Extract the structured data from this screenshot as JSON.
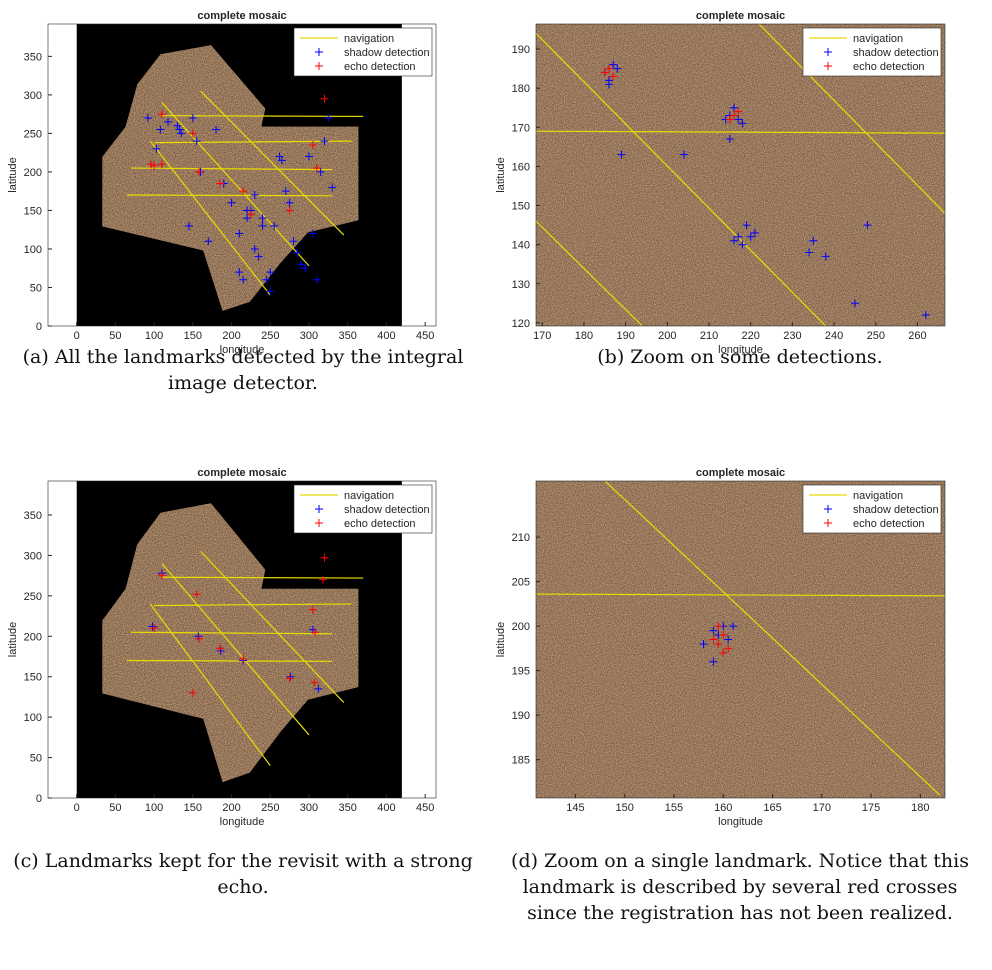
{
  "chart_data": [
    {
      "type": "scatter",
      "title": "complete mosaic",
      "x_label": "longitude",
      "y_label": "latitude",
      "caption": "(a) All the landmarks detected by the integral image detector.",
      "xlim": [
        -37,
        464
      ],
      "ylim": [
        0,
        392
      ],
      "xticks": [
        0,
        50,
        100,
        150,
        200,
        250,
        300,
        350,
        400,
        450
      ],
      "yticks": [
        0,
        50,
        100,
        150,
        200,
        250,
        300,
        350
      ],
      "background": "full-mosaic",
      "legend": "upper right",
      "series": [
        {
          "name": "navigation",
          "color": "#e8dc00",
          "draw": "line",
          "x": [
            110,
            370,
            null,
            100,
            355,
            null,
            70,
            330,
            null,
            65,
            330,
            null,
            95,
            250,
            null,
            110,
            300,
            null,
            160,
            345
          ],
          "values": [
            273,
            272,
            null,
            238,
            240,
            null,
            205,
            203,
            null,
            170,
            169,
            null,
            240,
            40,
            null,
            290,
            78,
            null,
            305,
            118
          ]
        },
        {
          "name": "shadow detection",
          "color": "#0000ff",
          "draw": "marker",
          "x": [
            92,
            103,
            108,
            118,
            130,
            133,
            135,
            150,
            155,
            160,
            180,
            190,
            200,
            210,
            220,
            225,
            230,
            235,
            240,
            245,
            250,
            255,
            262,
            265,
            270,
            275,
            280,
            285,
            290,
            295,
            300,
            305,
            310,
            315,
            320,
            325,
            330,
            210,
            215,
            220,
            230,
            240,
            250,
            170,
            145
          ],
          "values": [
            270,
            230,
            255,
            265,
            260,
            255,
            250,
            270,
            240,
            200,
            255,
            185,
            160,
            120,
            140,
            150,
            170,
            90,
            140,
            60,
            70,
            130,
            220,
            215,
            175,
            160,
            110,
            95,
            80,
            75,
            220,
            120,
            60,
            200,
            240,
            270,
            180,
            70,
            60,
            150,
            100,
            130,
            45,
            110,
            130
          ]
        },
        {
          "name": "echo detection",
          "color": "#ff0000",
          "draw": "marker",
          "x": [
            96,
            110,
            150,
            158,
            185,
            215,
            225,
            275,
            305,
            310,
            320,
            110,
            100
          ],
          "values": [
            210,
            275,
            250,
            200,
            185,
            175,
            145,
            150,
            235,
            205,
            295,
            210,
            208
          ]
        }
      ]
    },
    {
      "type": "scatter",
      "title": "complete mosaic",
      "x_label": "longitude",
      "y_label": "latitude",
      "caption": "(b) Zoom on some detections.",
      "xlim": [
        168.5,
        266.6
      ],
      "ylim": [
        119.2,
        196.4
      ],
      "xticks": [
        170,
        180,
        190,
        200,
        210,
        220,
        230,
        240,
        250,
        260
      ],
      "yticks": [
        120,
        130,
        140,
        150,
        160,
        170,
        180,
        190
      ],
      "background": "zoom",
      "legend": "upper right",
      "series": [
        {
          "name": "navigation",
          "color": "#e8dc00",
          "draw": "line",
          "x": [
            168.5,
            238,
            null,
            168.5,
            266.6,
            null,
            168.5,
            194,
            null,
            222,
            266.6
          ],
          "values": [
            194,
            119.2,
            null,
            169,
            168.5,
            null,
            146,
            119.2,
            null,
            196.4,
            148
          ]
        },
        {
          "name": "shadow detection",
          "color": "#0000ff",
          "draw": "marker",
          "x": [
            185,
            186,
            187,
            188,
            186,
            215,
            216,
            217,
            214,
            218,
            215,
            189,
            204,
            216,
            217,
            218,
            219,
            221,
            220,
            234,
            235,
            238,
            245,
            248,
            262
          ],
          "values": [
            184,
            182,
            186,
            185,
            181,
            173,
            175,
            172,
            172,
            171,
            167,
            163,
            163,
            141,
            142,
            140,
            145,
            143,
            142,
            138,
            141,
            137,
            125,
            145,
            122
          ]
        },
        {
          "name": "echo detection",
          "color": "#ff0000",
          "draw": "marker",
          "x": [
            185,
            186,
            187,
            215,
            216,
            217
          ],
          "values": [
            184,
            185,
            183,
            172,
            173,
            174
          ]
        }
      ]
    },
    {
      "type": "scatter",
      "title": "complete mosaic",
      "x_label": "longitude",
      "y_label": "latitude",
      "caption": "(c) Landmarks kept for the revisit with a strong echo.",
      "xlim": [
        -37,
        464
      ],
      "ylim": [
        0,
        392
      ],
      "xticks": [
        0,
        50,
        100,
        150,
        200,
        250,
        300,
        350,
        400,
        450
      ],
      "yticks": [
        0,
        50,
        100,
        150,
        200,
        250,
        300,
        350
      ],
      "background": "full-mosaic",
      "legend": "upper right",
      "series": [
        {
          "name": "navigation",
          "color": "#e8dc00",
          "draw": "line",
          "x": [
            110,
            370,
            null,
            100,
            355,
            null,
            70,
            330,
            null,
            65,
            330,
            null,
            95,
            250,
            null,
            110,
            300,
            null,
            160,
            345
          ],
          "values": [
            273,
            272,
            null,
            238,
            240,
            null,
            205,
            203,
            null,
            170,
            169,
            null,
            240,
            40,
            null,
            290,
            78,
            null,
            305,
            118
          ]
        },
        {
          "name": "shadow detection",
          "color": "#0000ff",
          "draw": "marker",
          "x": [
            98,
            110,
            157,
            186,
            215,
            276,
            305,
            312
          ],
          "values": [
            212,
            278,
            200,
            182,
            170,
            150,
            208,
            135
          ]
        },
        {
          "name": "echo detection",
          "color": "#ff0000",
          "draw": "marker",
          "x": [
            100,
            110,
            150,
            155,
            158,
            185,
            215,
            275,
            305,
            308,
            318,
            320,
            307
          ],
          "values": [
            210,
            275,
            130,
            252,
            197,
            185,
            172,
            148,
            233,
            205,
            270,
            297,
            143
          ]
        }
      ]
    },
    {
      "type": "scatter",
      "title": "complete mosaic",
      "x_label": "longitude",
      "y_label": "latitude",
      "caption": "(d) Zoom on a single landmark. Notice that this landmark is described by several red crosses since the registration has not been realized.",
      "xlim": [
        141,
        182.5
      ],
      "ylim": [
        180.7,
        216.3
      ],
      "xticks": [
        145,
        150,
        155,
        160,
        165,
        170,
        175,
        180
      ],
      "yticks": [
        185,
        190,
        195,
        200,
        205,
        210
      ],
      "background": "zoom",
      "legend": "upper right",
      "series": [
        {
          "name": "navigation",
          "color": "#e8dc00",
          "draw": "line",
          "x": [
            141,
            182.5,
            null,
            148,
            182
          ],
          "values": [
            203.6,
            203.4,
            null,
            216.3,
            181
          ]
        },
        {
          "name": "shadow detection",
          "color": "#0000ff",
          "draw": "marker",
          "x": [
            158,
            159,
            159.5,
            160,
            161,
            160.5,
            159
          ],
          "values": [
            198,
            196,
            199,
            200,
            200,
            198.5,
            199.5
          ]
        },
        {
          "name": "echo detection",
          "color": "#ff0000",
          "draw": "marker",
          "x": [
            159.5,
            160,
            160,
            159.5,
            160.5,
            159
          ],
          "values": [
            200,
            199,
            197,
            198,
            197.5,
            198.5
          ]
        }
      ]
    }
  ]
}
